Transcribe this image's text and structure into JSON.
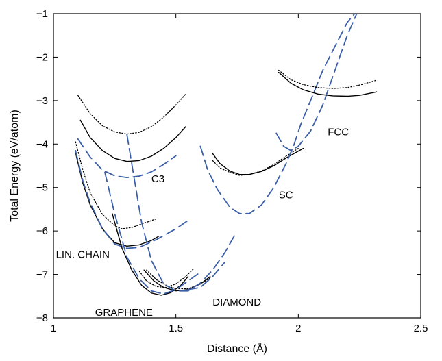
{
  "chart_data": {
    "type": "line",
    "title": "",
    "xlabel": "Distance  (Å)",
    "ylabel": "Total Energy (eV/atom)",
    "xlim": [
      1,
      2.5
    ],
    "ylim": [
      -8,
      -1
    ],
    "xticks": [
      1,
      1.5,
      2,
      2.5
    ],
    "xtick_labels": [
      "1",
      "1.5",
      "2",
      "2.5"
    ],
    "yticks": [
      -8,
      -7,
      -6,
      -5,
      -4,
      -3,
      -2,
      -1
    ],
    "ytick_labels": [
      "−8",
      "−7",
      "−6",
      "−5",
      "−4",
      "−3",
      "−2",
      "−1"
    ],
    "grid": false,
    "line_styles": {
      "solid": {
        "color": "#000000",
        "dash": ""
      },
      "dotted": {
        "color": "#000000",
        "dash": "1.5,2.5"
      },
      "dashed": {
        "color": "#3a5fa8",
        "dash": "14,7"
      }
    },
    "annotations": [
      {
        "text": "FCC",
        "x": 2.12,
        "y": -3.8
      },
      {
        "text": "C3",
        "x": 1.4,
        "y": -4.88
      },
      {
        "text": "SC",
        "x": 1.92,
        "y": -5.25
      },
      {
        "text": "LIN. CHAIN",
        "x": 1.01,
        "y": -6.62
      },
      {
        "text": "DIAMOND",
        "x": 1.65,
        "y": -7.72
      },
      {
        "text": "GRAPHENE",
        "x": 1.17,
        "y": -7.95
      }
    ],
    "series": [
      {
        "style": "solid",
        "points": [
          [
            1.11,
            -3.45
          ],
          [
            1.15,
            -3.85
          ],
          [
            1.2,
            -4.15
          ],
          [
            1.25,
            -4.33
          ],
          [
            1.3,
            -4.4
          ],
          [
            1.35,
            -4.38
          ],
          [
            1.4,
            -4.28
          ],
          [
            1.45,
            -4.1
          ],
          [
            1.5,
            -3.85
          ],
          [
            1.54,
            -3.6
          ]
        ]
      },
      {
        "style": "dotted",
        "points": [
          [
            1.1,
            -2.88
          ],
          [
            1.15,
            -3.3
          ],
          [
            1.2,
            -3.58
          ],
          [
            1.25,
            -3.72
          ],
          [
            1.3,
            -3.77
          ],
          [
            1.35,
            -3.73
          ],
          [
            1.4,
            -3.6
          ],
          [
            1.45,
            -3.38
          ],
          [
            1.5,
            -3.1
          ],
          [
            1.54,
            -2.85
          ]
        ]
      },
      {
        "style": "dashed",
        "points": [
          [
            1.1,
            -3.88
          ],
          [
            1.15,
            -4.3
          ],
          [
            1.2,
            -4.6
          ],
          [
            1.25,
            -4.73
          ],
          [
            1.3,
            -4.77
          ],
          [
            1.35,
            -4.74
          ],
          [
            1.4,
            -4.64
          ],
          [
            1.45,
            -4.47
          ],
          [
            1.5,
            -4.27
          ]
        ]
      },
      {
        "style": "solid",
        "points": [
          [
            1.09,
            -4.2
          ],
          [
            1.12,
            -4.9
          ],
          [
            1.15,
            -5.4
          ],
          [
            1.2,
            -5.95
          ],
          [
            1.25,
            -6.27
          ],
          [
            1.3,
            -6.35
          ],
          [
            1.35,
            -6.32
          ],
          [
            1.4,
            -6.22
          ],
          [
            1.43,
            -6.12
          ]
        ]
      },
      {
        "style": "dotted",
        "points": [
          [
            1.09,
            -3.95
          ],
          [
            1.12,
            -4.6
          ],
          [
            1.15,
            -5.12
          ],
          [
            1.2,
            -5.62
          ],
          [
            1.25,
            -5.88
          ],
          [
            1.28,
            -5.95
          ],
          [
            1.32,
            -5.92
          ],
          [
            1.38,
            -5.8
          ],
          [
            1.42,
            -5.72
          ]
        ]
      },
      {
        "style": "dashed",
        "points": [
          [
            1.09,
            -4.15
          ],
          [
            1.12,
            -4.85
          ],
          [
            1.15,
            -5.35
          ],
          [
            1.2,
            -5.95
          ],
          [
            1.25,
            -6.3
          ],
          [
            1.3,
            -6.4
          ],
          [
            1.35,
            -6.38
          ],
          [
            1.42,
            -6.2
          ],
          [
            1.5,
            -5.95
          ],
          [
            1.56,
            -5.72
          ]
        ]
      },
      {
        "style": "solid",
        "points": [
          [
            1.24,
            -5.6
          ],
          [
            1.28,
            -6.4
          ],
          [
            1.32,
            -6.9
          ],
          [
            1.36,
            -7.25
          ],
          [
            1.4,
            -7.43
          ],
          [
            1.44,
            -7.48
          ],
          [
            1.48,
            -7.42
          ],
          [
            1.52,
            -7.25
          ],
          [
            1.55,
            -7.05
          ]
        ]
      },
      {
        "style": "dotted",
        "points": [
          [
            1.35,
            -6.92
          ],
          [
            1.38,
            -7.15
          ],
          [
            1.42,
            -7.28
          ],
          [
            1.46,
            -7.3
          ],
          [
            1.5,
            -7.22
          ],
          [
            1.54,
            -7.05
          ],
          [
            1.57,
            -6.88
          ]
        ]
      },
      {
        "style": "dashed",
        "points": [
          [
            1.21,
            -4.65
          ],
          [
            1.25,
            -5.6
          ],
          [
            1.3,
            -6.6
          ],
          [
            1.35,
            -7.1
          ],
          [
            1.4,
            -7.38
          ],
          [
            1.45,
            -7.45
          ],
          [
            1.5,
            -7.35
          ],
          [
            1.55,
            -7.15
          ],
          [
            1.6,
            -6.95
          ]
        ]
      },
      {
        "style": "solid",
        "points": [
          [
            1.37,
            -6.9
          ],
          [
            1.41,
            -7.15
          ],
          [
            1.45,
            -7.3
          ],
          [
            1.5,
            -7.38
          ],
          [
            1.55,
            -7.35
          ],
          [
            1.6,
            -7.22
          ],
          [
            1.64,
            -7.05
          ]
        ]
      },
      {
        "style": "dotted",
        "points": [
          [
            1.38,
            -6.9
          ],
          [
            1.42,
            -7.12
          ],
          [
            1.46,
            -7.25
          ],
          [
            1.5,
            -7.33
          ],
          [
            1.55,
            -7.33
          ],
          [
            1.6,
            -7.22
          ],
          [
            1.64,
            -7.08
          ]
        ]
      },
      {
        "style": "dashed",
        "points": [
          [
            1.3,
            -3.78
          ],
          [
            1.33,
            -4.8
          ],
          [
            1.36,
            -5.8
          ],
          [
            1.4,
            -6.68
          ],
          [
            1.45,
            -7.22
          ],
          [
            1.5,
            -7.38
          ],
          [
            1.55,
            -7.38
          ],
          [
            1.6,
            -7.2
          ],
          [
            1.65,
            -6.9
          ],
          [
            1.7,
            -6.5
          ],
          [
            1.74,
            -6.1
          ]
        ]
      },
      {
        "style": "dashed",
        "points": [
          [
            1.55,
            -7.35
          ],
          [
            1.6,
            -7.3
          ],
          [
            1.65,
            -7.05
          ],
          [
            1.7,
            -6.72
          ]
        ]
      },
      {
        "style": "solid",
        "points": [
          [
            1.65,
            -4.22
          ],
          [
            1.68,
            -4.45
          ],
          [
            1.72,
            -4.62
          ],
          [
            1.76,
            -4.7
          ],
          [
            1.8,
            -4.7
          ],
          [
            1.85,
            -4.63
          ],
          [
            1.9,
            -4.5
          ],
          [
            1.95,
            -4.32
          ],
          [
            2.02,
            -4.1
          ]
        ]
      },
      {
        "style": "dotted",
        "points": [
          [
            1.65,
            -4.38
          ],
          [
            1.68,
            -4.55
          ],
          [
            1.72,
            -4.65
          ],
          [
            1.76,
            -4.72
          ],
          [
            1.8,
            -4.7
          ],
          [
            1.85,
            -4.62
          ],
          [
            1.9,
            -4.47
          ],
          [
            1.95,
            -4.28
          ],
          [
            2.0,
            -4.1
          ]
        ]
      },
      {
        "style": "dashed",
        "points": [
          [
            1.6,
            -4.05
          ],
          [
            1.63,
            -4.6
          ],
          [
            1.67,
            -5.05
          ],
          [
            1.72,
            -5.45
          ],
          [
            1.76,
            -5.6
          ],
          [
            1.8,
            -5.6
          ],
          [
            1.85,
            -5.4
          ],
          [
            1.9,
            -5.0
          ],
          [
            1.95,
            -4.45
          ],
          [
            1.98,
            -4.05
          ],
          [
            2.01,
            -3.55
          ],
          [
            2.05,
            -3.0
          ],
          [
            2.1,
            -2.3
          ],
          [
            2.15,
            -1.75
          ],
          [
            2.2,
            -1.2
          ],
          [
            2.23,
            -1.0
          ]
        ]
      },
      {
        "style": "dashed",
        "points": [
          [
            1.91,
            -3.75
          ],
          [
            1.94,
            -4.05
          ],
          [
            1.97,
            -4.15
          ],
          [
            2.0,
            -4.05
          ],
          [
            2.05,
            -3.7
          ],
          [
            2.1,
            -3.1
          ],
          [
            2.15,
            -2.3
          ],
          [
            2.2,
            -1.5
          ],
          [
            2.25,
            -0.85
          ]
        ]
      },
      {
        "style": "solid",
        "points": [
          [
            1.92,
            -2.35
          ],
          [
            1.97,
            -2.6
          ],
          [
            2.02,
            -2.75
          ],
          [
            2.08,
            -2.85
          ],
          [
            2.14,
            -2.89
          ],
          [
            2.2,
            -2.9
          ],
          [
            2.25,
            -2.88
          ],
          [
            2.32,
            -2.8
          ]
        ]
      },
      {
        "style": "dotted",
        "points": [
          [
            1.92,
            -2.3
          ],
          [
            1.97,
            -2.52
          ],
          [
            2.02,
            -2.63
          ],
          [
            2.08,
            -2.7
          ],
          [
            2.14,
            -2.72
          ],
          [
            2.2,
            -2.7
          ],
          [
            2.26,
            -2.63
          ],
          [
            2.32,
            -2.53
          ]
        ]
      }
    ]
  }
}
